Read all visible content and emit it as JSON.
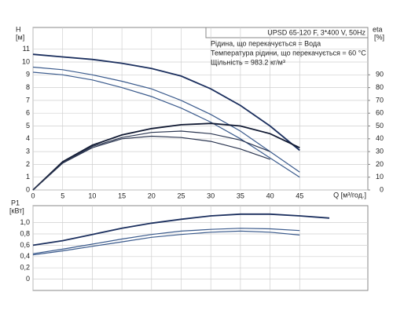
{
  "chart_data": [
    {
      "type": "line",
      "header": "UPSD 65-120 F, 3*400 V, 50Hz",
      "notes": [
        "Рідина, що перекачується = Вода",
        "Температура рідини, що перекачується = 60 °C",
        "Щільність = 983.2 кг/м³"
      ],
      "ylabel": "H",
      "yunit": "[м]",
      "y2label": "eta",
      "y2unit": "[%]",
      "xlabel": "Q [м³/год.]",
      "x": [
        0,
        5,
        10,
        15,
        20,
        25,
        30,
        35,
        40,
        45,
        50
      ],
      "xlim": [
        0,
        56.5
      ],
      "xticks": [
        0,
        5,
        10,
        15,
        20,
        25,
        30,
        35,
        40,
        45
      ],
      "ylim": [
        0,
        12.7
      ],
      "yticks": [
        0,
        1,
        2,
        3,
        4,
        5,
        6,
        7,
        8,
        9,
        10,
        11
      ],
      "y2lim": [
        0,
        127
      ],
      "y2ticks": [
        0,
        10,
        20,
        30,
        40,
        50,
        60,
        70,
        80,
        90
      ],
      "grid": true,
      "series": [
        {
          "color": "#1b2f5e",
          "values": [
            10.6,
            10.4,
            10.2,
            9.9,
            9.5,
            8.9,
            7.9,
            6.6,
            5.0,
            3.1,
            null
          ]
        },
        {
          "color": "#3a5a8c",
          "values": [
            9.6,
            9.4,
            9.0,
            8.5,
            7.9,
            7.0,
            5.9,
            4.6,
            3.0,
            1.4,
            null
          ]
        },
        {
          "color": "#3a5a8c",
          "values": [
            9.2,
            9.0,
            8.6,
            8.0,
            7.3,
            6.4,
            5.3,
            4.0,
            2.5,
            1.0,
            null
          ]
        },
        {
          "color": "#111a33",
          "axis": "y2",
          "values": [
            0,
            22,
            35,
            43,
            48,
            51,
            52,
            50,
            44,
            33,
            null
          ]
        },
        {
          "color": "#2a3550",
          "axis": "y2",
          "values": [
            0,
            21,
            34,
            41,
            45,
            46,
            44,
            39,
            30,
            null,
            null
          ]
        },
        {
          "color": "#2a3550",
          "axis": "y2",
          "values": [
            0,
            21,
            33,
            40,
            42,
            41,
            38,
            32,
            24,
            null,
            null
          ]
        }
      ]
    },
    {
      "type": "line",
      "ylabel": "P1",
      "yunit": "[кВт]",
      "x": [
        0,
        5,
        10,
        15,
        20,
        25,
        30,
        35,
        40,
        45,
        50
      ],
      "xlim": [
        0,
        56.5
      ],
      "ylim": [
        -0.2,
        1.3
      ],
      "yticks": [
        0,
        {
          "value": 0.2,
          "label": "0,2"
        },
        {
          "value": 0.4,
          "label": "0,4"
        },
        {
          "value": 0.6,
          "label": "0,6"
        },
        {
          "value": 0.8,
          "label": "0,8"
        },
        {
          "value": 1.0,
          "label": "1,0"
        }
      ],
      "grid": true,
      "series": [
        {
          "color": "#1b2f5e",
          "values": [
            0.6,
            0.68,
            0.79,
            0.9,
            0.99,
            1.06,
            1.12,
            1.15,
            1.15,
            1.12,
            1.08
          ]
        },
        {
          "color": "#3a5a8c",
          "values": [
            0.45,
            0.53,
            0.62,
            0.71,
            0.79,
            0.85,
            0.88,
            0.9,
            0.89,
            0.86,
            null
          ]
        },
        {
          "color": "#3a5a8c",
          "values": [
            0.43,
            0.5,
            0.58,
            0.66,
            0.74,
            0.79,
            0.83,
            0.85,
            0.83,
            0.78,
            null
          ]
        }
      ]
    }
  ]
}
